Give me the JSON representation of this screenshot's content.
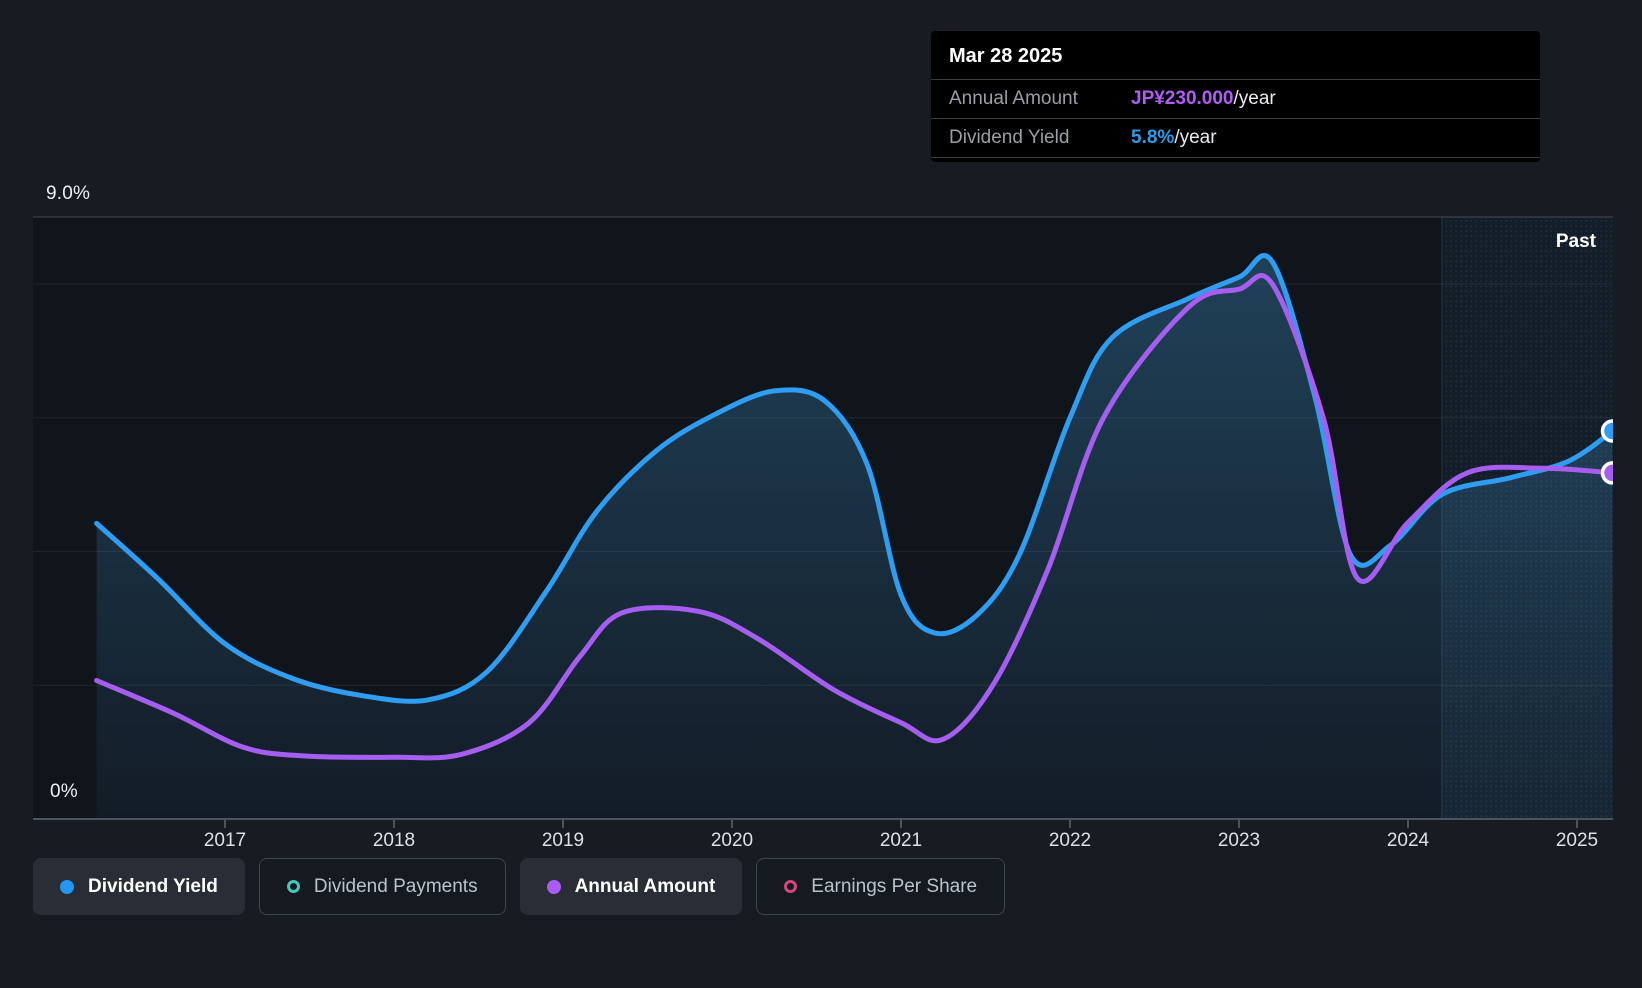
{
  "page": {
    "background": "#171b22",
    "plot_background": "#10141b"
  },
  "tooltip": {
    "date": "Mar 28 2025",
    "rows": [
      {
        "label": "Annual Amount",
        "value": "JP¥230.000",
        "suffix": "/year",
        "value_color": "#b15cf7"
      },
      {
        "label": "Dividend Yield",
        "value": "5.8%",
        "suffix": "/year",
        "value_color": "#2b9df0"
      }
    ]
  },
  "chart": {
    "y_axis_top_label": "9.0%",
    "y_axis_bottom_label": "0%",
    "past_label": "Past"
  },
  "legend": [
    {
      "label": "Dividend Yield",
      "marker": "filled-dot",
      "color": "#2196f3",
      "style": "solid"
    },
    {
      "label": "Dividend Payments",
      "marker": "ring",
      "color": "#45c8ba",
      "style": "outlined"
    },
    {
      "label": "Annual Amount",
      "marker": "filled-dot",
      "color": "#ab5cf5",
      "style": "solid"
    },
    {
      "label": "Earnings Per Share",
      "marker": "ring",
      "color": "#d1477e",
      "style": "outlined"
    }
  ],
  "chart_data": {
    "type": "area",
    "x_tick_labels": [
      "2017",
      "2018",
      "2019",
      "2020",
      "2021",
      "2022",
      "2023",
      "2024",
      "2025"
    ],
    "x_tick_years": [
      2017,
      2018,
      2019,
      2020,
      2021,
      2022,
      2023,
      2024,
      2025
    ],
    "x_range_years": [
      2015.86,
      2025.21
    ],
    "percent_axis": {
      "min": 0,
      "max": 9,
      "top_label": "9.0%",
      "bottom_label": "0%",
      "gridline_values": [
        9,
        8,
        6,
        4,
        2,
        0
      ]
    },
    "amount_axis": {
      "min": 0,
      "max": 400,
      "unit": "JP¥/year"
    },
    "past_region_start_year": 2024.2,
    "grid": "horizontal-only",
    "legend_position": "bottom",
    "series": [
      {
        "name": "Dividend Yield",
        "axis": "percent",
        "unit": "%",
        "color": "#2e9df2",
        "area_fill": true,
        "end_marker": true,
        "end_value_label": "5.8%/year",
        "points": [
          [
            2016.24,
            4.42
          ],
          [
            2016.6,
            3.6
          ],
          [
            2017.0,
            2.62
          ],
          [
            2017.4,
            2.1
          ],
          [
            2017.8,
            1.85
          ],
          [
            2018.2,
            1.78
          ],
          [
            2018.55,
            2.2
          ],
          [
            2018.9,
            3.4
          ],
          [
            2019.2,
            4.6
          ],
          [
            2019.55,
            5.5
          ],
          [
            2019.9,
            6.05
          ],
          [
            2020.25,
            6.4
          ],
          [
            2020.55,
            6.25
          ],
          [
            2020.8,
            5.3
          ],
          [
            2021.0,
            3.35
          ],
          [
            2021.2,
            2.78
          ],
          [
            2021.45,
            3.05
          ],
          [
            2021.7,
            3.95
          ],
          [
            2022.0,
            6.0
          ],
          [
            2022.25,
            7.2
          ],
          [
            2022.7,
            7.78
          ],
          [
            2023.0,
            8.1
          ],
          [
            2023.2,
            8.32
          ],
          [
            2023.45,
            6.3
          ],
          [
            2023.66,
            3.95
          ],
          [
            2023.9,
            4.1
          ],
          [
            2024.2,
            4.85
          ],
          [
            2024.6,
            5.1
          ],
          [
            2024.95,
            5.35
          ],
          [
            2025.21,
            5.8
          ]
        ]
      },
      {
        "name": "Annual Amount",
        "axis": "amount",
        "unit": "JP¥/year",
        "color": "#a55ef0",
        "area_fill": false,
        "end_marker": true,
        "end_value_label": "JP¥230.000/year",
        "points": [
          [
            2016.24,
            92
          ],
          [
            2016.7,
            70
          ],
          [
            2017.1,
            48
          ],
          [
            2017.45,
            42
          ],
          [
            2018.0,
            41
          ],
          [
            2018.4,
            43
          ],
          [
            2018.8,
            64
          ],
          [
            2019.1,
            108
          ],
          [
            2019.35,
            137
          ],
          [
            2019.8,
            138
          ],
          [
            2020.15,
            120
          ],
          [
            2020.6,
            86
          ],
          [
            2021.0,
            64
          ],
          [
            2021.25,
            53
          ],
          [
            2021.55,
            90
          ],
          [
            2021.87,
            166
          ],
          [
            2022.2,
            267
          ],
          [
            2022.7,
            340
          ],
          [
            2023.0,
            352
          ],
          [
            2023.2,
            355
          ],
          [
            2023.5,
            266
          ],
          [
            2023.7,
            160
          ],
          [
            2024.0,
            197
          ],
          [
            2024.35,
            230
          ],
          [
            2024.8,
            233
          ],
          [
            2025.21,
            230
          ]
        ]
      }
    ]
  }
}
